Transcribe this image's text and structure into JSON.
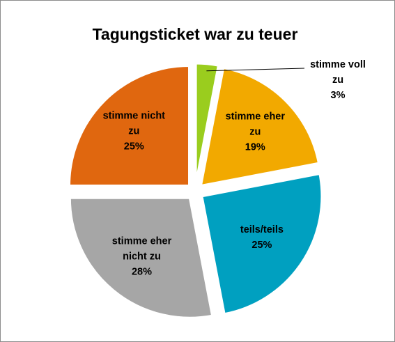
{
  "chart_data": {
    "type": "pie",
    "title": "Tagungsticket war zu teuer",
    "exploded": true,
    "slices": [
      {
        "label_lines": [
          "stimme voll",
          "zu",
          "3%"
        ],
        "value": 3,
        "color": "#9ACD1E"
      },
      {
        "label_lines": [
          "stimme eher",
          "zu",
          "19%"
        ],
        "value": 19,
        "color": "#F2A900"
      },
      {
        "label_lines": [
          "teils/teils",
          "25%"
        ],
        "value": 25,
        "color": "#00A0C0"
      },
      {
        "label_lines": [
          "stimme eher",
          "nicht zu",
          "28%"
        ],
        "value": 28,
        "color": "#A6A6A6"
      },
      {
        "label_lines": [
          "stimme nicht",
          "zu",
          "25%"
        ],
        "value": 25,
        "color": "#E0670F"
      }
    ]
  }
}
